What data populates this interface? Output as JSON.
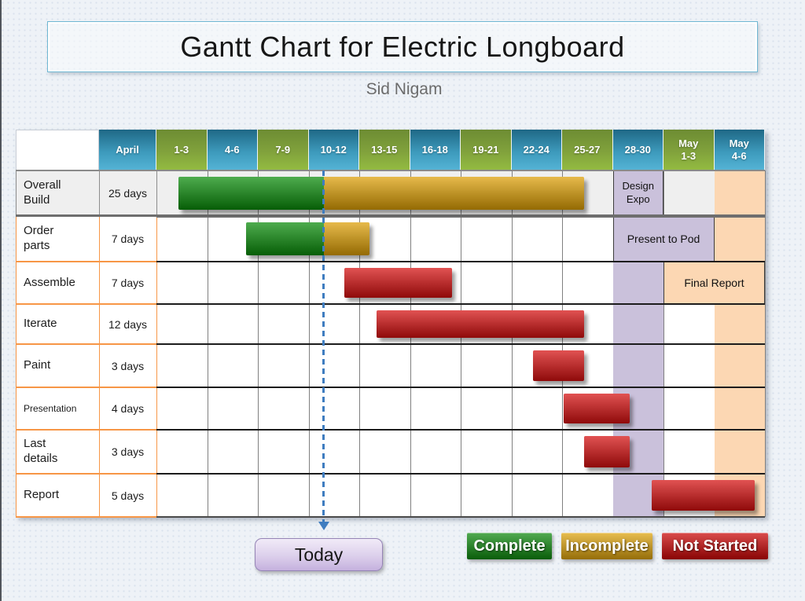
{
  "title": "Gantt Chart for Electric Longboard",
  "subtitle": "Sid Nigam",
  "today_label": "Today",
  "legend": [
    {
      "label": "Complete",
      "color": "#0e8a0e"
    },
    {
      "label": "Incomplete",
      "color": "#dfa40c"
    },
    {
      "label": "Not Started",
      "color": "#cc0606"
    }
  ],
  "chart_data": {
    "type": "bar",
    "subtype": "gantt",
    "title": "Gantt Chart for Electric Longboard",
    "month_header": "April",
    "columns": [
      "1-3",
      "4-6",
      "7-9",
      "10-12",
      "13-15",
      "16-18",
      "19-21",
      "22-24",
      "25-27",
      "28-30",
      "May\n1-3",
      "May\n4-6"
    ],
    "days_per_column": 3,
    "axis_range_days": [
      0,
      36
    ],
    "today_day": 9.9,
    "colors": {
      "complete": "#0a8c0a",
      "incomplete": "#dd9f05",
      "not_started": "#d50f0f",
      "lavender": "#cac1db",
      "peach": "#fcd7b3",
      "row_highlight": "#efefef"
    },
    "tasks": [
      {
        "name": "Overall\nBuild",
        "duration": "25 days",
        "bars": [
          {
            "status": "Complete",
            "start_day": 1.3,
            "end_day": 9.9
          },
          {
            "status": "Incomplete",
            "start_day": 9.9,
            "end_day": 25.3
          }
        ]
      },
      {
        "name": "Order\nparts",
        "duration": "7 days",
        "bars": [
          {
            "status": "Complete",
            "start_day": 5.3,
            "end_day": 9.9
          },
          {
            "status": "Incomplete",
            "start_day": 9.9,
            "end_day": 12.6
          }
        ]
      },
      {
        "name": "Assemble",
        "duration": "7 days",
        "bars": [
          {
            "status": "Not Started",
            "start_day": 11.1,
            "end_day": 17.5
          }
        ]
      },
      {
        "name": "Iterate",
        "duration": "12 days",
        "bars": [
          {
            "status": "Not Started",
            "start_day": 13.0,
            "end_day": 25.3
          }
        ]
      },
      {
        "name": "Paint",
        "duration": "3 days",
        "bars": [
          {
            "status": "Not Started",
            "start_day": 22.3,
            "end_day": 25.3
          }
        ]
      },
      {
        "name": "Presentation",
        "duration": "4 days",
        "bars": [
          {
            "status": "Not Started",
            "start_day": 24.1,
            "end_day": 28.0
          }
        ]
      },
      {
        "name": "Last\ndetails",
        "duration": "3 days",
        "bars": [
          {
            "status": "Not Started",
            "start_day": 25.3,
            "end_day": 28.0
          }
        ]
      },
      {
        "name": "Report",
        "duration": "5 days",
        "bars": [
          {
            "status": "Not Started",
            "start_day": 29.3,
            "end_day": 35.4
          }
        ]
      }
    ],
    "milestones": [
      {
        "task": "Overall Build",
        "label": "Design\nExpo",
        "col_start": 9,
        "col_span": 1,
        "color_key": "lavender"
      },
      {
        "task": "Order parts",
        "label": "Present to Pod",
        "col_start": 9,
        "col_span": 2,
        "color_key": "lavender"
      },
      {
        "task": "Assemble",
        "label": "Final Report",
        "col_start": 10,
        "col_span": 2,
        "color_key": "peach"
      }
    ],
    "highlight_columns": [
      {
        "col": 9,
        "color_key": "lavender"
      },
      {
        "col": 11,
        "color_key": "peach"
      }
    ],
    "legend_position": "bottom-right",
    "grid": true
  }
}
